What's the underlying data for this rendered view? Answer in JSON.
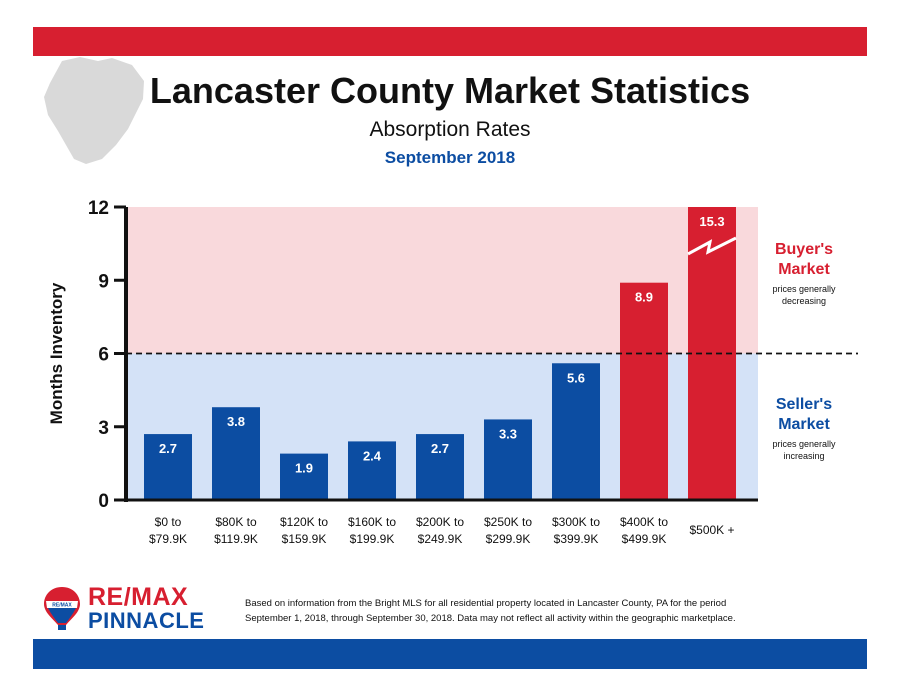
{
  "header": {
    "title": "Lancaster County Market Statistics",
    "subtitle": "Absorption Rates",
    "period": "September 2018"
  },
  "zones": {
    "buyer": {
      "title_line1": "Buyer's",
      "title_line2": "Market",
      "note_line1": "prices generally",
      "note_line2": "decreasing"
    },
    "seller": {
      "title_line1": "Seller's",
      "title_line2": "Market",
      "note_line1": "prices generally",
      "note_line2": "increasing"
    }
  },
  "brand": {
    "name": "RE/MAX",
    "sub": "PINNACLE",
    "badge": "RE/MAX",
    "red": "#d71f30",
    "blue": "#0c4da2"
  },
  "footnote": {
    "line1": "Based on information from the Bright MLS for all residential property located in Lancaster County, PA for the period",
    "line2": "September 1, 2018, through September 30, 2018.  Data may not reflect all activity within the geographic marketplace."
  },
  "chart_data": {
    "type": "bar",
    "categories": [
      [
        "$0 to",
        "$79.9K"
      ],
      [
        "$80K to",
        "$119.9K"
      ],
      [
        "$120K to",
        "$159.9K"
      ],
      [
        "$160K to",
        "$199.9K"
      ],
      [
        "$200K to",
        "$249.9K"
      ],
      [
        "$250K to",
        "$299.9K"
      ],
      [
        "$300K to",
        "$399.9K"
      ],
      [
        "$400K to",
        "$499.9K"
      ],
      [
        "$500K +"
      ]
    ],
    "values": [
      2.7,
      3.8,
      1.9,
      2.4,
      2.7,
      3.3,
      5.6,
      8.9,
      15.3
    ],
    "data_labels": [
      "2.7",
      "3.8",
      "1.9",
      "2.4",
      "2.7",
      "3.3",
      "5.6",
      "8.9",
      "15.3"
    ],
    "ylabel": "Months Inventory",
    "xlabel": "",
    "ylim": [
      0,
      12
    ],
    "yticks": [
      0,
      3,
      6,
      9,
      12
    ],
    "threshold": 6,
    "axis_break_on_last_bar": true,
    "colors": {
      "below_threshold_bar": "#0c4da2",
      "above_threshold_bar": "#d71f30",
      "buyer_zone_bg": "#f9d9dc",
      "seller_zone_bg": "#d4e2f7"
    }
  }
}
